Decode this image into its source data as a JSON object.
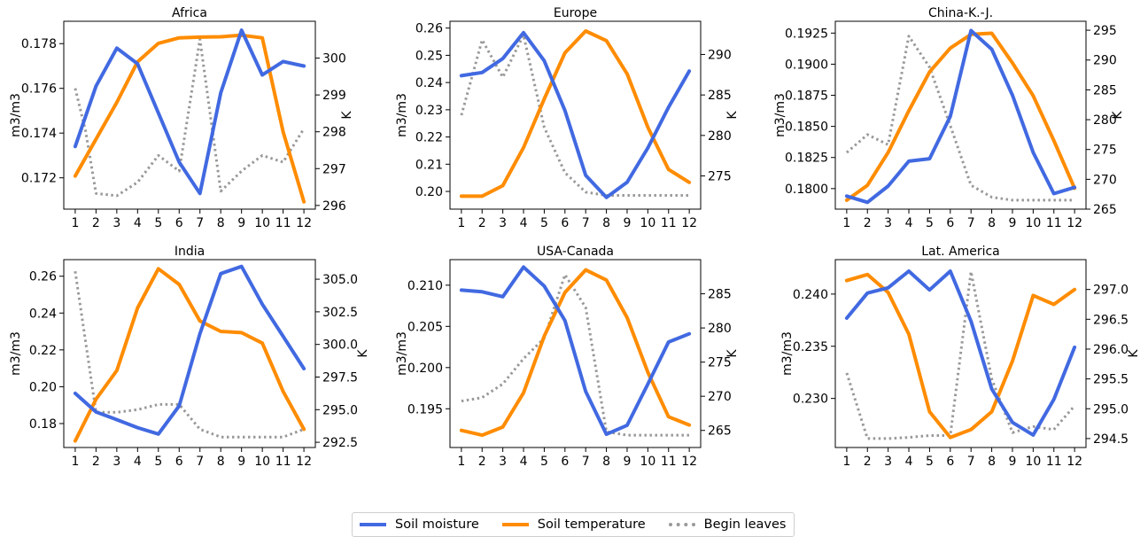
{
  "legend": {
    "placement": "bottom-center",
    "items": [
      {
        "label": "Soil moisture",
        "color": "#4169e1",
        "style": "solid"
      },
      {
        "label": "Soil temperature",
        "color": "#ff8c00",
        "style": "solid"
      },
      {
        "label": "Begin leaves",
        "color": "#999999",
        "style": "dotted"
      }
    ]
  },
  "chart_data": [
    {
      "type": "line",
      "title": "Africa",
      "x": [
        1,
        2,
        3,
        4,
        5,
        6,
        7,
        8,
        9,
        10,
        11,
        12
      ],
      "ylabel": "m3/m3",
      "ylim": [
        0.1706,
        0.179
      ],
      "yticks": [
        0.172,
        0.174,
        0.176,
        0.178
      ],
      "ytick_labels": [
        "0.172",
        "0.174",
        "0.176",
        "0.178"
      ],
      "y2label": "K",
      "y2lim": [
        295.9,
        301.0
      ],
      "y2ticks": [
        296,
        297,
        298,
        299,
        300
      ],
      "y2tick_labels": [
        "296",
        "297",
        "298",
        "299",
        "300"
      ],
      "series": [
        {
          "name": "Soil moisture",
          "axis": "left",
          "color": "#4169e1",
          "style": "solid",
          "values": [
            0.1734,
            0.1761,
            0.1778,
            0.1771,
            0.1749,
            0.1727,
            0.1713,
            0.1758,
            0.1786,
            0.1766,
            0.1772,
            0.177
          ]
        },
        {
          "name": "Soil temperature",
          "axis": "right",
          "color": "#ff8c00",
          "style": "solid",
          "values": [
            296.8,
            297.8,
            298.8,
            299.9,
            300.4,
            300.55,
            300.57,
            300.58,
            300.62,
            300.55,
            298.0,
            296.1
          ]
        },
        {
          "name": "Begin leaves",
          "axis": "left",
          "color": "#999999",
          "style": "dotted",
          "values": [
            0.176,
            0.1741,
            0.1713,
            0.1712,
            0.1718,
            0.173,
            0.1723,
            0.1782,
            0.1714,
            0.1723,
            0.173,
            0.1727,
            0.1742
          ],
          "x": [
            1,
            1.5,
            2,
            3,
            4,
            5,
            6,
            7,
            8,
            9,
            10,
            11,
            12
          ]
        }
      ]
    },
    {
      "type": "line",
      "title": "Europe",
      "x": [
        1,
        2,
        3,
        4,
        5,
        6,
        7,
        8,
        9,
        10,
        11,
        12
      ],
      "ylabel": "m3/m3",
      "ylim": [
        0.1935,
        0.2625
      ],
      "yticks": [
        0.2,
        0.21,
        0.22,
        0.23,
        0.24,
        0.25,
        0.26
      ],
      "ytick_labels": [
        "0.20",
        "0.21",
        "0.22",
        "0.23",
        "0.24",
        "0.25",
        "0.26"
      ],
      "y2label": "K",
      "y2lim": [
        270.9,
        294.1
      ],
      "y2ticks": [
        275,
        280,
        285,
        290
      ],
      "y2tick_labels": [
        "275",
        "280",
        "285",
        "290"
      ],
      "series": [
        {
          "name": "Soil moisture",
          "axis": "left",
          "color": "#4169e1",
          "style": "solid",
          "values": [
            0.2425,
            0.2437,
            0.2488,
            0.2583,
            0.248,
            0.2297,
            0.2059,
            0.1978,
            0.2034,
            0.216,
            0.2309,
            0.2442
          ]
        },
        {
          "name": "Soil temperature",
          "axis": "right",
          "color": "#ff8c00",
          "style": "solid",
          "values": [
            272.5,
            272.5,
            273.8,
            278.5,
            284.5,
            290.2,
            292.9,
            291.7,
            287.6,
            281.0,
            275.8,
            274.2
          ]
        },
        {
          "name": "Begin leaves",
          "axis": "right",
          "color": "#999999",
          "style": "dotted",
          "values": [
            282.5,
            291.8,
            287.2,
            292.4,
            281.0,
            275.4,
            273.0,
            272.6,
            272.6,
            272.6,
            272.6,
            272.6
          ]
        }
      ]
    },
    {
      "type": "line",
      "title": "China-K.-J.",
      "x": [
        1,
        2,
        3,
        4,
        5,
        6,
        7,
        8,
        9,
        10,
        11,
        12
      ],
      "ylabel": "m3/m3",
      "ylim": [
        0.17835,
        0.19345
      ],
      "yticks": [
        0.18,
        0.1825,
        0.185,
        0.1875,
        0.19,
        0.1925
      ],
      "ytick_labels": [
        "0.1800",
        "0.1825",
        "0.1850",
        "0.1875",
        "0.1900",
        "0.1925"
      ],
      "y2label": "K",
      "y2lim": [
        265.0,
        296.5
      ],
      "y2ticks": [
        265,
        270,
        275,
        280,
        285,
        290,
        295
      ],
      "y2tick_labels": [
        "265",
        "270",
        "275",
        "280",
        "285",
        "290",
        "295"
      ],
      "series": [
        {
          "name": "Soil moisture",
          "axis": "left",
          "color": "#4169e1",
          "style": "solid",
          "values": [
            0.1794,
            0.1789,
            0.1802,
            0.1822,
            0.1824,
            0.1858,
            0.1927,
            0.1912,
            0.1875,
            0.1829,
            0.1796,
            0.1801
          ]
        },
        {
          "name": "Soil temperature",
          "axis": "right",
          "color": "#ff8c00",
          "style": "solid",
          "values": [
            266.5,
            269.0,
            274.5,
            281.5,
            288.0,
            292.0,
            294.3,
            294.5,
            289.5,
            284.0,
            276.5,
            268.5
          ]
        },
        {
          "name": "Begin leaves",
          "axis": "right",
          "color": "#999999",
          "style": "dotted",
          "values": [
            274.5,
            277.5,
            275.8,
            294.0,
            288.8,
            279.0,
            269.0,
            267.0,
            266.5,
            266.5,
            266.5,
            266.5
          ]
        }
      ]
    },
    {
      "type": "line",
      "title": "India",
      "x": [
        1,
        2,
        3,
        4,
        5,
        6,
        7,
        8,
        9,
        10,
        11,
        12
      ],
      "ylabel": "m3/m3",
      "ylim": [
        0.167,
        0.269
      ],
      "yticks": [
        0.18,
        0.2,
        0.22,
        0.24,
        0.26
      ],
      "ytick_labels": [
        "0.18",
        "0.20",
        "0.22",
        "0.24",
        "0.26"
      ],
      "y2label": "K",
      "y2lim": [
        292.1,
        306.5
      ],
      "y2ticks": [
        292.5,
        295.0,
        297.5,
        300.0,
        302.5,
        305.0
      ],
      "y2tick_labels": [
        "292.5",
        "295.0",
        "297.5",
        "300.0",
        "302.5",
        "305.0"
      ],
      "series": [
        {
          "name": "Soil moisture",
          "axis": "left",
          "color": "#4169e1",
          "style": "solid",
          "values": [
            0.1964,
            0.1863,
            0.1821,
            0.1778,
            0.1743,
            0.1896,
            0.2288,
            0.2614,
            0.2653,
            0.2448,
            0.2274,
            0.2098
          ]
        },
        {
          "name": "Soil temperature",
          "axis": "right",
          "color": "#ff8c00",
          "style": "solid",
          "values": [
            292.6,
            295.8,
            298.0,
            302.8,
            305.8,
            304.6,
            301.8,
            301.0,
            300.9,
            300.1,
            296.4,
            293.5
          ]
        },
        {
          "name": "Begin leaves",
          "axis": "right",
          "color": "#999999",
          "style": "dotted",
          "values": [
            305.6,
            294.8,
            294.8,
            295.0,
            295.4,
            295.4,
            293.5,
            292.9,
            292.9,
            292.9,
            292.9,
            293.5
          ]
        }
      ]
    },
    {
      "type": "line",
      "title": "USA-Canada",
      "x": [
        1,
        2,
        3,
        4,
        5,
        6,
        7,
        8,
        9,
        10,
        11,
        12
      ],
      "ylabel": "m3/m3",
      "ylim": [
        0.1903,
        0.2131
      ],
      "yticks": [
        0.195,
        0.2,
        0.205,
        0.21
      ],
      "ytick_labels": [
        "0.195",
        "0.200",
        "0.205",
        "0.210"
      ],
      "y2label": "K",
      "y2lim": [
        262.5,
        290.0
      ],
      "y2ticks": [
        265,
        270,
        275,
        280,
        285
      ],
      "y2tick_labels": [
        "265",
        "270",
        "275",
        "280",
        "285"
      ],
      "series": [
        {
          "name": "Soil moisture",
          "axis": "left",
          "color": "#4169e1",
          "style": "solid",
          "values": [
            0.2094,
            0.2092,
            0.2086,
            0.2122,
            0.2099,
            0.2057,
            0.1971,
            0.1919,
            0.193,
            0.198,
            0.2031,
            0.2041
          ]
        },
        {
          "name": "Soil temperature",
          "axis": "right",
          "color": "#ff8c00",
          "style": "solid",
          "values": [
            265.0,
            264.3,
            265.5,
            270.5,
            278.8,
            285.2,
            288.5,
            287.0,
            281.5,
            273.5,
            267.0,
            265.8
          ]
        },
        {
          "name": "Begin leaves",
          "axis": "right",
          "color": "#999999",
          "style": "dotted",
          "values": [
            269.3,
            269.8,
            271.8,
            275.5,
            278.5,
            287.8,
            283.0,
            264.8,
            264.3,
            264.3,
            264.3,
            264.3
          ]
        }
      ]
    },
    {
      "type": "line",
      "title": "Lat. America",
      "x": [
        1,
        2,
        3,
        4,
        5,
        6,
        7,
        8,
        9,
        10,
        11,
        12
      ],
      "ylabel": "m3/m3",
      "ylim": [
        0.2253,
        0.2433
      ],
      "yticks": [
        0.23,
        0.235,
        0.24
      ],
      "ytick_labels": [
        "0.230",
        "0.235",
        "0.240"
      ],
      "y2label": "K",
      "y2lim": [
        294.35,
        297.5
      ],
      "y2ticks": [
        294.5,
        295.0,
        295.5,
        296.0,
        296.5,
        297.0
      ],
      "y2tick_labels": [
        "294.5",
        "295.0",
        "295.5",
        "296.0",
        "296.5",
        "297.0"
      ],
      "series": [
        {
          "name": "Soil moisture",
          "axis": "left",
          "color": "#4169e1",
          "style": "solid",
          "values": [
            0.2377,
            0.2401,
            0.2406,
            0.2422,
            0.2404,
            0.2422,
            0.2374,
            0.2309,
            0.2277,
            0.2265,
            0.2299,
            0.2349
          ]
        },
        {
          "name": "Soil temperature",
          "axis": "right",
          "color": "#ff8c00",
          "style": "solid",
          "values": [
            297.15,
            297.25,
            296.95,
            296.25,
            294.95,
            294.52,
            294.65,
            294.95,
            295.8,
            296.9,
            296.75,
            297.0
          ]
        },
        {
          "name": "Begin leaves",
          "axis": "right",
          "color": "#999999",
          "style": "dotted",
          "values": [
            295.6,
            294.5,
            294.5,
            294.52,
            294.55,
            294.55,
            297.3,
            295.5,
            294.6,
            294.7,
            294.65,
            295.05
          ]
        }
      ]
    }
  ]
}
